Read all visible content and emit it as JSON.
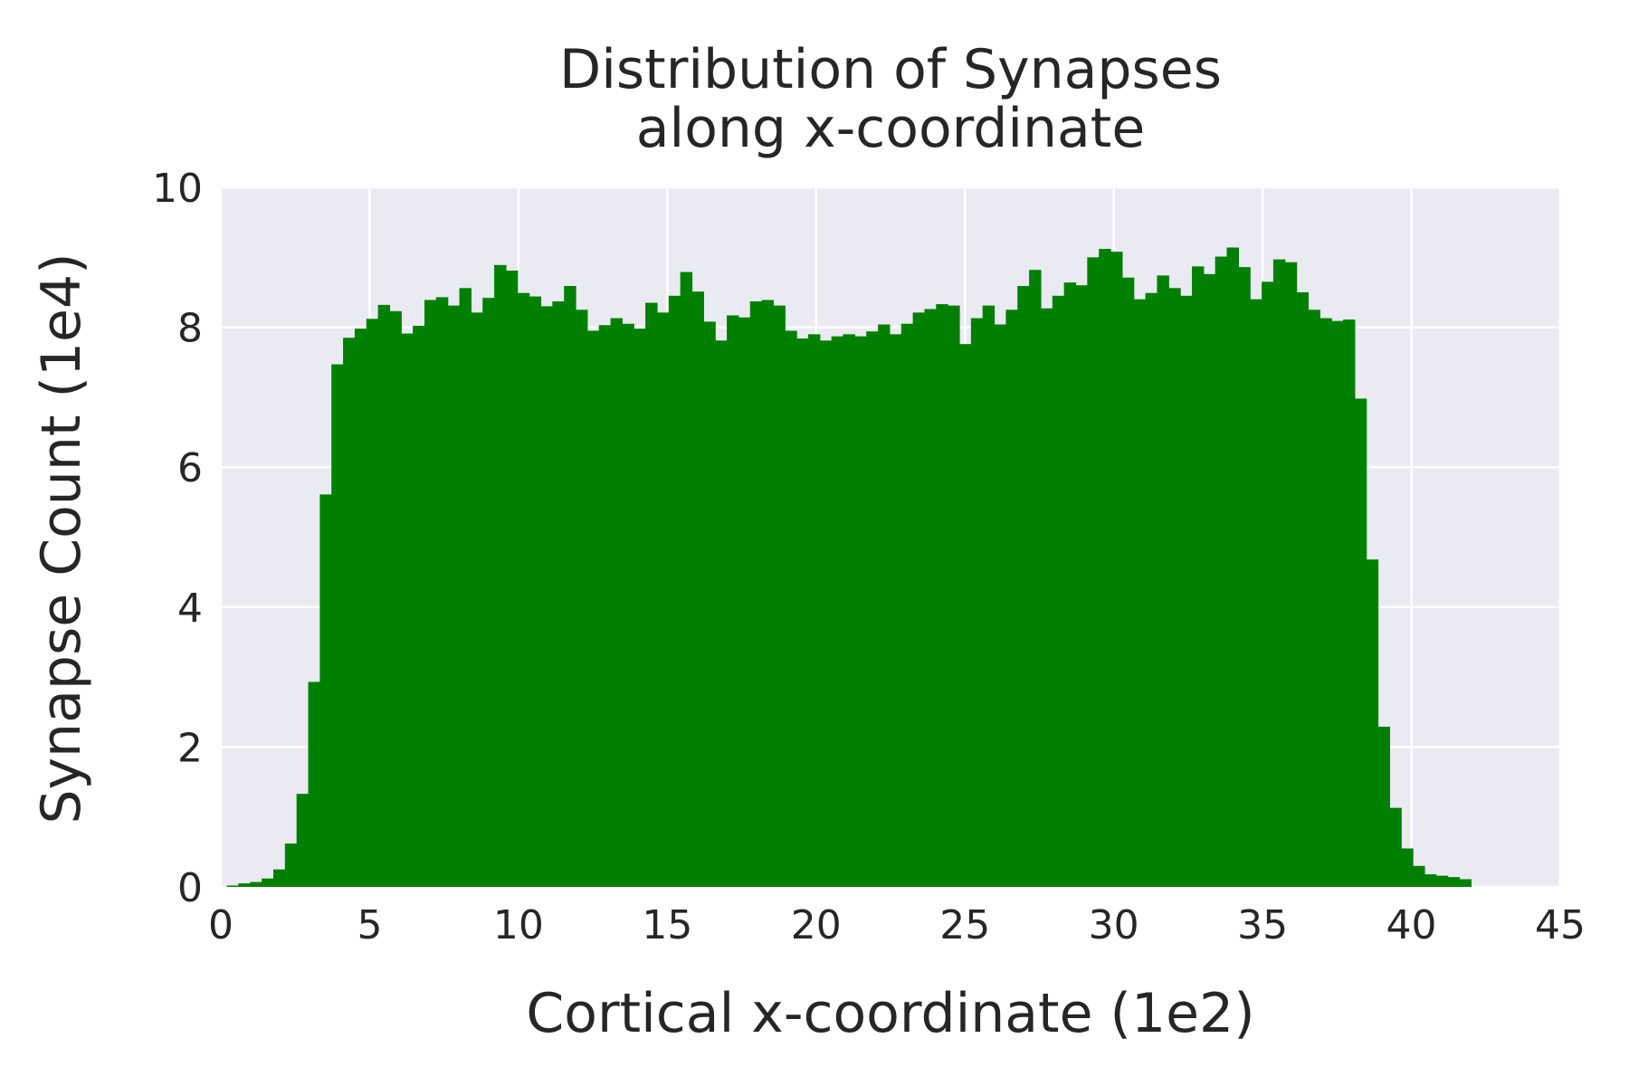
{
  "chart_data": {
    "type": "bar",
    "histogram": true,
    "title_lines": [
      "Distribution of Synapses",
      "along x-coordinate"
    ],
    "xlabel": "Cortical x-coordinate (1e2)",
    "ylabel": "Synapse Count (1e4)",
    "xlim": [
      0,
      45
    ],
    "ylim": [
      0,
      10
    ],
    "xticks": [
      "0",
      "5",
      "10",
      "15",
      "20",
      "25",
      "30",
      "35",
      "40",
      "45"
    ],
    "yticks": [
      "0",
      "2",
      "4",
      "6",
      "8",
      "10"
    ],
    "grid": true,
    "legend": "none",
    "colors": {
      "bar": "#008000",
      "plot_background": "#EAEAF2",
      "grid": "#FFFFFF",
      "text": "#262626"
    },
    "bin_range": [
      0.2,
      42.0
    ],
    "values": [
      0.02,
      0.05,
      0.07,
      0.12,
      0.25,
      0.62,
      1.33,
      2.93,
      5.61,
      7.47,
      7.85,
      7.98,
      8.12,
      8.32,
      8.23,
      7.91,
      8.02,
      8.39,
      8.43,
      8.31,
      8.56,
      8.21,
      8.42,
      8.89,
      8.81,
      8.49,
      8.44,
      8.3,
      8.37,
      8.59,
      8.25,
      7.95,
      8.03,
      8.13,
      8.05,
      7.98,
      8.35,
      8.21,
      8.45,
      8.79,
      8.51,
      8.08,
      7.81,
      8.17,
      8.14,
      8.37,
      8.39,
      8.31,
      7.95,
      7.84,
      7.9,
      7.81,
      7.87,
      7.9,
      7.87,
      7.94,
      8.04,
      7.9,
      8.05,
      8.21,
      8.26,
      8.33,
      8.31,
      7.76,
      8.13,
      8.31,
      8.04,
      8.25,
      8.59,
      8.82,
      8.27,
      8.45,
      8.64,
      8.6,
      9.0,
      9.12,
      9.08,
      8.71,
      8.4,
      8.49,
      8.74,
      8.56,
      8.45,
      8.87,
      8.76,
      9.01,
      9.14,
      8.86,
      8.4,
      8.65,
      8.97,
      8.93,
      8.5,
      8.25,
      8.13,
      8.09,
      8.11,
      6.98,
      4.68,
      2.29,
      1.13,
      0.55,
      0.3,
      0.18,
      0.16,
      0.14,
      0.11
    ]
  }
}
